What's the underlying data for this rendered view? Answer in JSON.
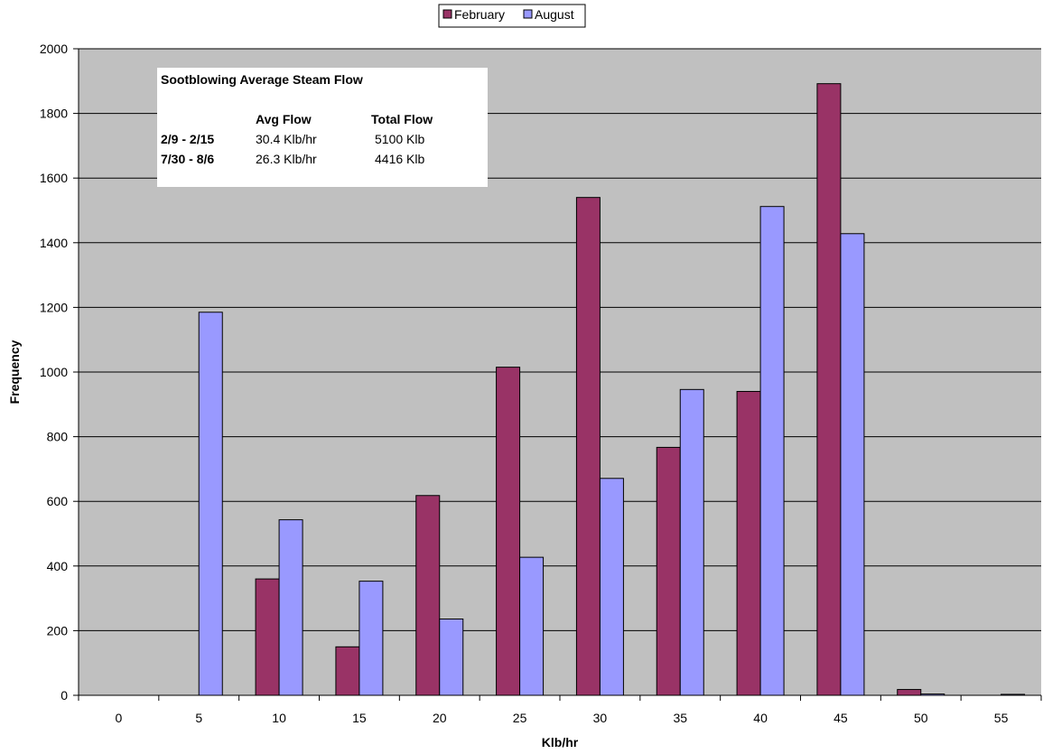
{
  "chart_data": {
    "type": "bar",
    "xlabel": "Klb/hr",
    "ylabel": "Frequency",
    "ylim": [
      0,
      2000
    ],
    "y_ticks": [
      "0",
      "200",
      "400",
      "600",
      "800",
      "1000",
      "1200",
      "1400",
      "1600",
      "1800",
      "2000"
    ],
    "categories": [
      "0",
      "5",
      "10",
      "15",
      "20",
      "25",
      "30",
      "35",
      "40",
      "45",
      "50",
      "55"
    ],
    "series": [
      {
        "name": "February",
        "color": "#993366",
        "values": [
          0,
          0,
          360,
          150,
          618,
          1015,
          1540,
          767,
          940,
          1892,
          18,
          0
        ]
      },
      {
        "name": "August",
        "color": "#9999FF",
        "values": [
          0,
          1185,
          543,
          353,
          236,
          427,
          671,
          946,
          1512,
          1428,
          4,
          3
        ]
      }
    ],
    "grid": true,
    "plot_background": "#C0C0C0",
    "legend_position": "top-center",
    "annotation": {
      "title": "Sootblowing Average Steam Flow",
      "headers": [
        "Avg Flow",
        "Total Flow"
      ],
      "rows": [
        {
          "label": "2/9 - 2/15",
          "avg": "30.4 Klb/hr",
          "total": "5100 Klb"
        },
        {
          "label": "7/30 - 8/6",
          "avg": "26.3 Klb/hr",
          "total": "4416 Klb"
        }
      ]
    }
  }
}
